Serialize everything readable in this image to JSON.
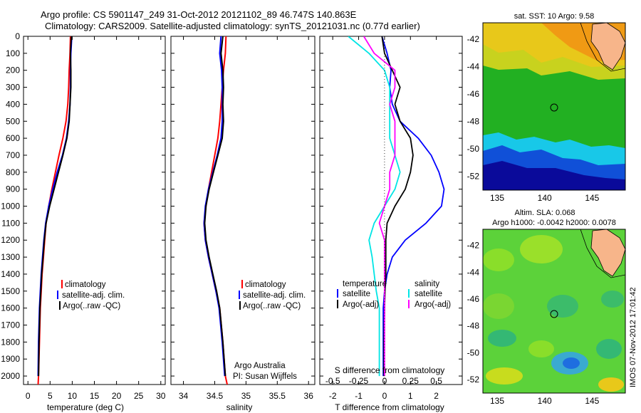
{
  "header": {
    "line1": "Argo profile: CS 5901147_249 31-Oct-2012 20121102_89 46.747S 140.863E",
    "line2": "Climatology: CARS2009. Satellite-adjusted climatology: synTS_20121031.nc (0.77d earlier)"
  },
  "colors": {
    "climatology": "#ff0000",
    "satellite": "#0000ff",
    "argo": "#000000",
    "sal_satellite": "#00e5e5",
    "sal_argo": "#ff00ff"
  },
  "chart_data": [
    {
      "type": "line",
      "name": "temperature profile",
      "xlabel": "temperature (deg C)",
      "ylabel": "",
      "xlim": [
        -1,
        31
      ],
      "ylim": [
        2050,
        0
      ],
      "xticks": [
        0,
        5,
        10,
        15,
        20,
        25,
        30
      ],
      "yticks": [
        0,
        100,
        200,
        300,
        400,
        500,
        600,
        700,
        800,
        900,
        1000,
        1100,
        1200,
        1300,
        1400,
        1500,
        1600,
        1700,
        1800,
        1900,
        2000
      ],
      "legend": [
        "climatology",
        "satellite-adj. clim.",
        "Argo(..raw -QC)"
      ],
      "series": [
        {
          "name": "climatology",
          "x": [
            9.6,
            9.5,
            9.3,
            9.2,
            9.0,
            8.6,
            7.9,
            7.0,
            6.2,
            5.4,
            4.7,
            4.1,
            3.8,
            3.5,
            3.2,
            3.0,
            2.8,
            2.6,
            2.4,
            2.3
          ],
          "y": [
            0,
            100,
            200,
            300,
            400,
            500,
            600,
            700,
            800,
            900,
            1000,
            1100,
            1200,
            1300,
            1400,
            1500,
            1600,
            1800,
            2000,
            2050
          ]
        },
        {
          "name": "satellite-adj. clim.",
          "x": [
            9.9,
            9.7,
            9.6,
            9.6,
            9.5,
            9.2,
            8.7,
            7.8,
            6.6,
            5.6,
            4.7,
            4.0,
            3.6,
            3.3,
            3.0,
            2.8,
            2.6,
            2.4,
            2.3
          ],
          "y": [
            0,
            100,
            200,
            300,
            400,
            500,
            600,
            700,
            800,
            900,
            1000,
            1100,
            1200,
            1300,
            1400,
            1500,
            1600,
            1800,
            2000
          ]
        },
        {
          "name": "Argo(..raw -QC)",
          "x": [
            9.8,
            9.6,
            9.7,
            9.7,
            9.5,
            9.3,
            8.8,
            7.9,
            6.9,
            5.9,
            4.9,
            4.1,
            3.7,
            3.4,
            3.1,
            2.9,
            2.7,
            2.5,
            2.4
          ],
          "y": [
            0,
            100,
            200,
            300,
            400,
            500,
            600,
            700,
            800,
            900,
            1000,
            1100,
            1200,
            1300,
            1400,
            1500,
            1600,
            1800,
            2000
          ]
        }
      ]
    },
    {
      "type": "line",
      "name": "salinity profile",
      "xlabel": "salinity",
      "xlim": [
        33.8,
        36.1
      ],
      "ylim": [
        2050,
        0
      ],
      "xticks": [
        34,
        34.5,
        35,
        35.5,
        36
      ],
      "xticklabels": [
        "34",
        "34.5",
        "35",
        "35.5",
        "36"
      ],
      "legend": [
        "climatology",
        "satellite-adj. clim.",
        "Argo(..raw -QC)"
      ],
      "annotations": [
        "Argo Australia",
        "PI: Susan Wijffels"
      ],
      "series": [
        {
          "name": "climatology",
          "x": [
            34.68,
            34.67,
            34.64,
            34.62,
            34.6,
            34.58,
            34.55,
            34.5,
            34.45,
            34.4,
            34.36,
            34.33,
            34.35,
            34.4,
            34.46,
            34.52,
            34.58,
            34.63,
            34.67,
            34.7
          ],
          "y": [
            0,
            100,
            200,
            300,
            400,
            500,
            600,
            700,
            800,
            900,
            1000,
            1100,
            1200,
            1300,
            1400,
            1500,
            1600,
            1800,
            2000,
            2050
          ]
        },
        {
          "name": "satellite-adj. clim.",
          "x": [
            34.6,
            34.58,
            34.61,
            34.62,
            34.62,
            34.62,
            34.6,
            34.54,
            34.47,
            34.4,
            34.35,
            34.33,
            34.35,
            34.4,
            34.46,
            34.52,
            34.57,
            34.62,
            34.66
          ],
          "y": [
            0,
            100,
            200,
            300,
            400,
            500,
            600,
            700,
            800,
            900,
            1000,
            1100,
            1200,
            1300,
            1400,
            1500,
            1600,
            1800,
            2000
          ]
        },
        {
          "name": "Argo(..raw -QC)",
          "x": [
            34.63,
            34.6,
            34.63,
            34.64,
            34.63,
            34.64,
            34.62,
            34.55,
            34.48,
            34.41,
            34.36,
            34.34,
            34.36,
            34.41,
            34.47,
            34.53,
            34.58,
            34.63,
            34.67
          ],
          "y": [
            0,
            100,
            200,
            300,
            400,
            500,
            600,
            700,
            800,
            900,
            1000,
            1100,
            1200,
            1300,
            1400,
            1500,
            1600,
            1800,
            2000
          ]
        }
      ]
    },
    {
      "type": "line",
      "name": "difference from climatology",
      "xlabel": "T difference from climatology",
      "xlabel2": "S difference from climatology",
      "xlim": [
        -2.5,
        3
      ],
      "ylim": [
        2050,
        0
      ],
      "xticks": [
        -2,
        -1,
        0,
        1,
        2
      ],
      "xticks2": [
        "-0.5",
        "-0.25",
        "0",
        "0.25",
        "0.5"
      ],
      "legend_titles": [
        "temperature",
        "salinity"
      ],
      "legend": [
        "satellite",
        "Argo(-adj)",
        "satellite",
        "Argo(-adj)"
      ],
      "series": [
        {
          "name": "temperature satellite",
          "x": [
            -0.1,
            0.1,
            0.25,
            0.2,
            0.3,
            0.6,
            1.3,
            1.8,
            2.1,
            2.3,
            2.2,
            1.6,
            0.8,
            0.3,
            0.1,
            0.0,
            -0.05,
            -0.05,
            -0.05
          ],
          "y": [
            0,
            100,
            200,
            300,
            400,
            500,
            600,
            700,
            800,
            900,
            1000,
            1100,
            1200,
            1300,
            1400,
            1500,
            1600,
            1800,
            2000
          ]
        },
        {
          "name": "temperature Argo(-adj)",
          "x": [
            -0.1,
            0.0,
            0.3,
            0.6,
            0.4,
            0.6,
            1.0,
            1.1,
            1.0,
            0.8,
            0.4,
            0.1,
            0.05,
            0.05,
            0.05,
            0.02,
            0.0,
            -0.02,
            -0.02
          ],
          "y": [
            0,
            100,
            200,
            300,
            400,
            500,
            600,
            700,
            800,
            900,
            1000,
            1100,
            1200,
            1300,
            1400,
            1500,
            1600,
            1800,
            2000
          ]
        },
        {
          "name": "salinity satellite",
          "x": [
            -0.35,
            -0.15,
            0.0,
            0.05,
            0.05,
            0.05,
            0.05,
            0.1,
            0.15,
            0.1,
            0.0,
            -0.1,
            -0.15,
            -0.12,
            -0.1,
            -0.08,
            -0.05,
            -0.05
          ],
          "y": [
            0,
            100,
            200,
            300,
            400,
            500,
            600,
            700,
            800,
            900,
            1000,
            1100,
            1200,
            1300,
            1400,
            1500,
            1600,
            2000
          ]
        },
        {
          "name": "salinity Argo(-adj)",
          "x": [
            -0.2,
            -0.1,
            0.1,
            0.1,
            0.05,
            0.1,
            0.1,
            0.1,
            0.05,
            0.05,
            0.0,
            -0.05,
            0.0,
            0.0,
            0.0,
            0.0,
            0.0,
            0.0
          ],
          "y": [
            0,
            100,
            200,
            300,
            400,
            500,
            600,
            700,
            800,
            900,
            1000,
            1100,
            1200,
            1300,
            1400,
            1500,
            1600,
            2000
          ]
        }
      ]
    },
    {
      "type": "heatmap",
      "name": "sat. SST map",
      "title": "sat. SST: 10 Argo: 9.58",
      "xticks": [
        135,
        140,
        145
      ],
      "yticks": [
        -42,
        -44,
        -46,
        -48,
        -50,
        -52
      ],
      "xlim": [
        133.5,
        148.5
      ],
      "ylim": [
        -53,
        -40.8
      ],
      "marker": {
        "lon": 140.863,
        "lat": -46.747
      }
    },
    {
      "type": "heatmap",
      "name": "Altimetry SLA map",
      "title": "Altim. SLA: 0.068",
      "subtitle": "Argo h1000: -0.0042 h2000: 0.0078",
      "xticks": [
        135,
        140,
        145
      ],
      "yticks": [
        -42,
        -44,
        -46,
        -48,
        -50,
        -52
      ],
      "xlim": [
        133.5,
        148.5
      ],
      "ylim": [
        -53,
        -40.8
      ],
      "marker": {
        "lon": 140.863,
        "lat": -46.747
      }
    }
  ],
  "credit": "IMOS 07-Nov-2012 17:01:42"
}
